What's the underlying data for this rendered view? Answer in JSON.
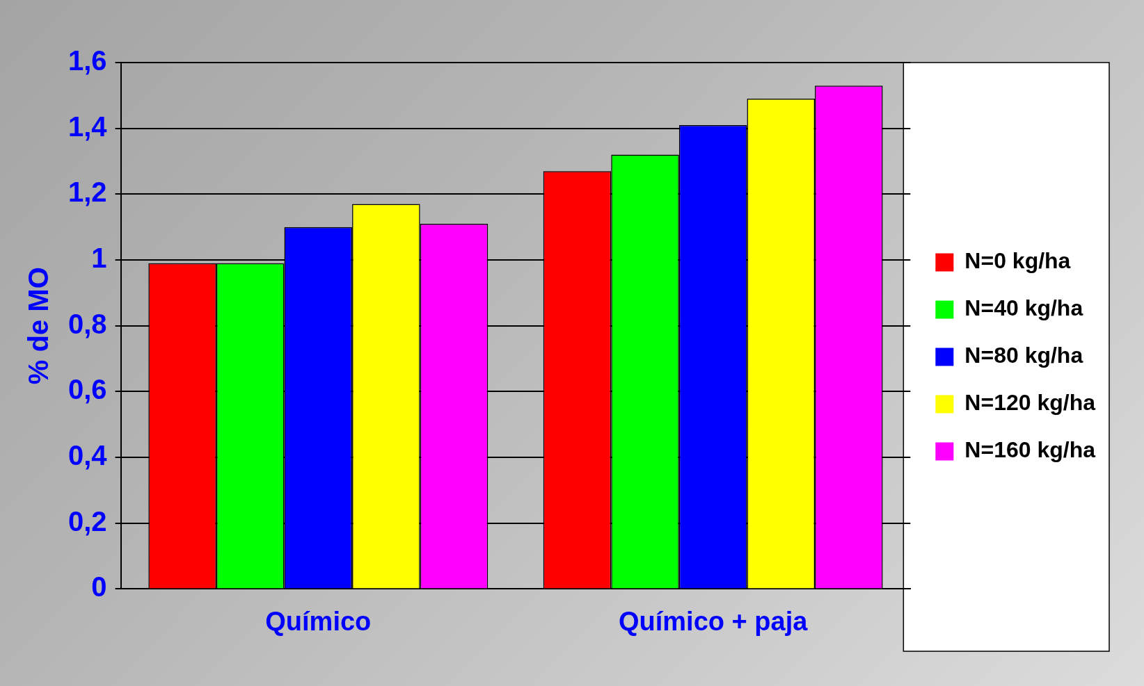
{
  "chart_data": {
    "type": "bar",
    "ylabel": "% de MO",
    "categories": [
      "Químico",
      "Químico + paja"
    ],
    "series": [
      {
        "name": "N=0 kg/ha",
        "color": "#ff0000",
        "values": [
          0.99,
          1.27
        ]
      },
      {
        "name": "N=40 kg/ha",
        "color": "#00ff00",
        "values": [
          0.99,
          1.32
        ]
      },
      {
        "name": "N=80 kg/ha",
        "color": "#0000ff",
        "values": [
          1.1,
          1.41
        ]
      },
      {
        "name": "N=120 kg/ha",
        "color": "#ffff00",
        "values": [
          1.17,
          1.49
        ]
      },
      {
        "name": "N=160 kg/ha",
        "color": "#ff00ff",
        "values": [
          1.11,
          1.53
        ]
      }
    ],
    "ylim": [
      0,
      1.6
    ],
    "yticks": [
      0,
      {
        "value": 0.2,
        "label": "0,2"
      },
      {
        "value": 0.4,
        "label": "0,4"
      },
      {
        "value": 0.6,
        "label": "0,6"
      },
      {
        "value": 0.8,
        "label": "0,8"
      },
      1,
      {
        "value": 1.2,
        "label": "1,2"
      },
      {
        "value": 1.4,
        "label": "1,4"
      },
      {
        "value": 1.6,
        "label": "1,6"
      }
    ],
    "grid": "y",
    "legend": "right"
  }
}
